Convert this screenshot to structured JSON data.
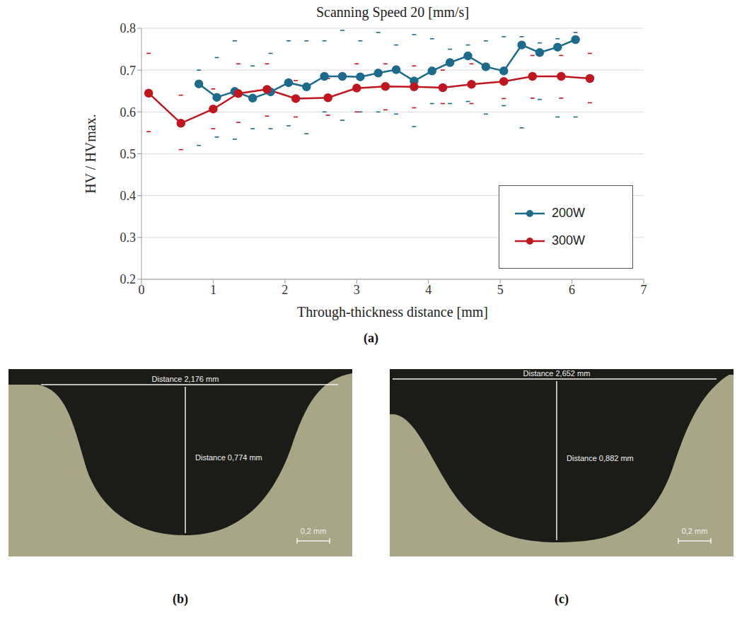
{
  "chart_data": {
    "type": "line",
    "title": "Scanning Speed 20 [mm/s]",
    "x_label": "Through-thickness distance [mm]",
    "y_label": "HV / HVmax.",
    "xlim": [
      0,
      7
    ],
    "xticks": [
      0,
      1,
      2,
      3,
      4,
      5,
      6,
      7
    ],
    "ylim": [
      0.2,
      0.8
    ],
    "yticks": [
      0.2,
      0.3,
      0.4,
      0.5,
      0.6,
      0.7,
      0.8
    ],
    "grid": true,
    "legend": "bottom-right",
    "series": [
      {
        "name": "200W",
        "color": "#1d6b8c",
        "marker": "circle",
        "x": [
          0.8,
          1.05,
          1.3,
          1.55,
          1.8,
          2.05,
          2.3,
          2.55,
          2.8,
          3.05,
          3.3,
          3.55,
          3.8,
          4.05,
          4.3,
          4.55,
          4.8,
          5.05,
          5.3,
          5.55,
          5.8,
          6.05
        ],
        "values": [
          0.667,
          0.635,
          0.649,
          0.633,
          0.648,
          0.67,
          0.66,
          0.685,
          0.685,
          0.684,
          0.693,
          0.701,
          0.674,
          0.698,
          0.718,
          0.734,
          0.708,
          0.698,
          0.76,
          0.742,
          0.755,
          0.773
        ],
        "upper": [
          0.7,
          0.73,
          0.77,
          0.71,
          0.74,
          0.77,
          0.77,
          0.77,
          0.795,
          0.77,
          0.79,
          0.76,
          0.785,
          0.775,
          0.75,
          0.76,
          0.77,
          0.78,
          0.78,
          0.765,
          0.775,
          0.79
        ],
        "lower": [
          0.52,
          0.54,
          0.535,
          0.56,
          0.56,
          0.567,
          0.548,
          0.6,
          0.58,
          0.6,
          0.6,
          0.595,
          0.565,
          0.62,
          0.62,
          0.625,
          0.595,
          0.615,
          0.562,
          0.63,
          0.588,
          0.588
        ]
      },
      {
        "name": "300W",
        "color": "#c0171f",
        "marker": "circle",
        "x": [
          0.1,
          0.55,
          1.0,
          1.35,
          1.75,
          2.15,
          2.6,
          3.0,
          3.4,
          3.8,
          4.2,
          4.6,
          5.05,
          5.45,
          5.85,
          6.25
        ],
        "values": [
          0.645,
          0.573,
          0.607,
          0.644,
          0.654,
          0.632,
          0.634,
          0.657,
          0.661,
          0.66,
          0.658,
          0.666,
          0.673,
          0.685,
          0.685,
          0.68
        ],
        "upper": [
          0.74,
          0.64,
          0.655,
          0.715,
          0.715,
          0.675,
          0.68,
          0.715,
          0.715,
          0.71,
          0.7,
          0.715,
          0.705,
          0.735,
          0.735,
          0.74
        ],
        "lower": [
          0.553,
          0.51,
          0.56,
          0.575,
          0.59,
          0.588,
          0.592,
          0.6,
          0.605,
          0.61,
          0.62,
          0.62,
          0.632,
          0.633,
          0.633,
          0.622
        ]
      }
    ]
  },
  "chart_panel_label": "(a)",
  "micrographs": [
    {
      "panel_label": "(b)",
      "width_label": "Distance 2,176 mm",
      "depth_label": "Distance 0,774 mm",
      "scale_bar": "0,2 mm"
    },
    {
      "panel_label": "(c)",
      "width_label": "Distance 2,652 mm",
      "depth_label": "Distance 0,882 mm",
      "scale_bar": "0,2 mm"
    }
  ]
}
